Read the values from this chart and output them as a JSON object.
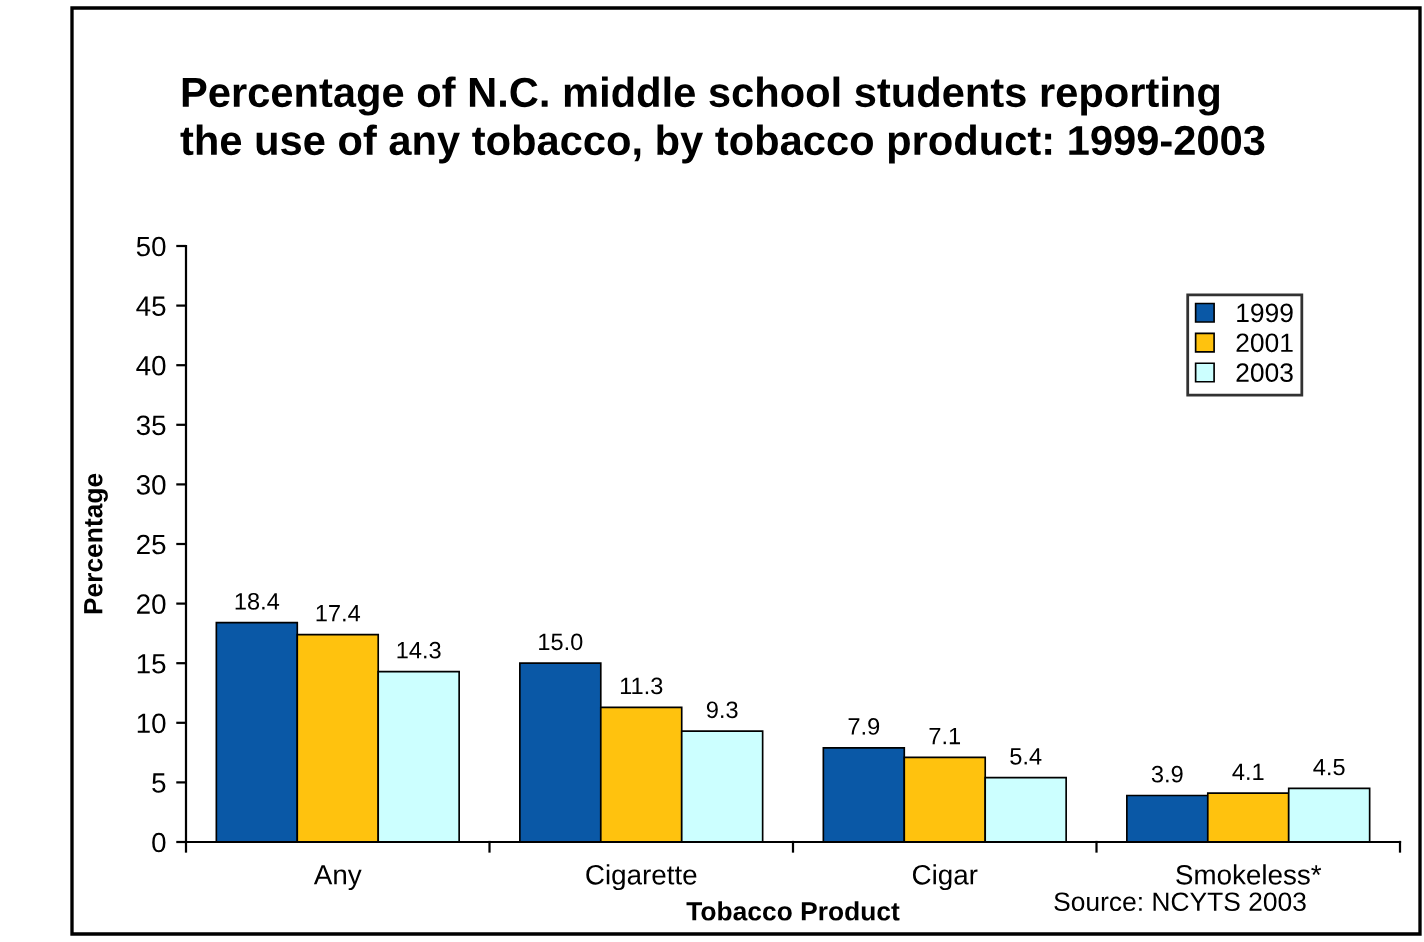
{
  "chart_data": {
    "type": "bar",
    "title": "Percentage of N.C. middle school students reporting\nthe use of any tobacco, by tobacco product: 1999-2003",
    "categories": [
      "Any",
      "Cigarette",
      "Cigar",
      "Smokeless*"
    ],
    "series": [
      {
        "name": "1999",
        "color": "#0a58a6",
        "values": [
          18.4,
          15.0,
          7.9,
          3.9
        ],
        "value_labels": [
          "18.4",
          "15.0",
          "7.9",
          "3.9"
        ]
      },
      {
        "name": "2001",
        "color": "#ffc20e",
        "values": [
          17.4,
          11.3,
          7.1,
          4.1
        ],
        "value_labels": [
          "17.4",
          "11.3",
          "7.1",
          "4.1"
        ]
      },
      {
        "name": "2003",
        "color": "#ccffff",
        "values": [
          14.3,
          9.3,
          5.4,
          4.5
        ],
        "value_labels": [
          "14.3",
          "9.3",
          "5.4",
          "4.5"
        ]
      }
    ],
    "xlabel": "Tobacco Product",
    "ylabel": "Percentage",
    "ylim": [
      0,
      50
    ],
    "yticks": [
      0,
      5,
      10,
      15,
      20,
      25,
      30,
      35,
      40,
      45,
      50
    ],
    "grid": false,
    "legend": "top right",
    "annotations": [
      "Source: NCYTS 2003"
    ]
  }
}
